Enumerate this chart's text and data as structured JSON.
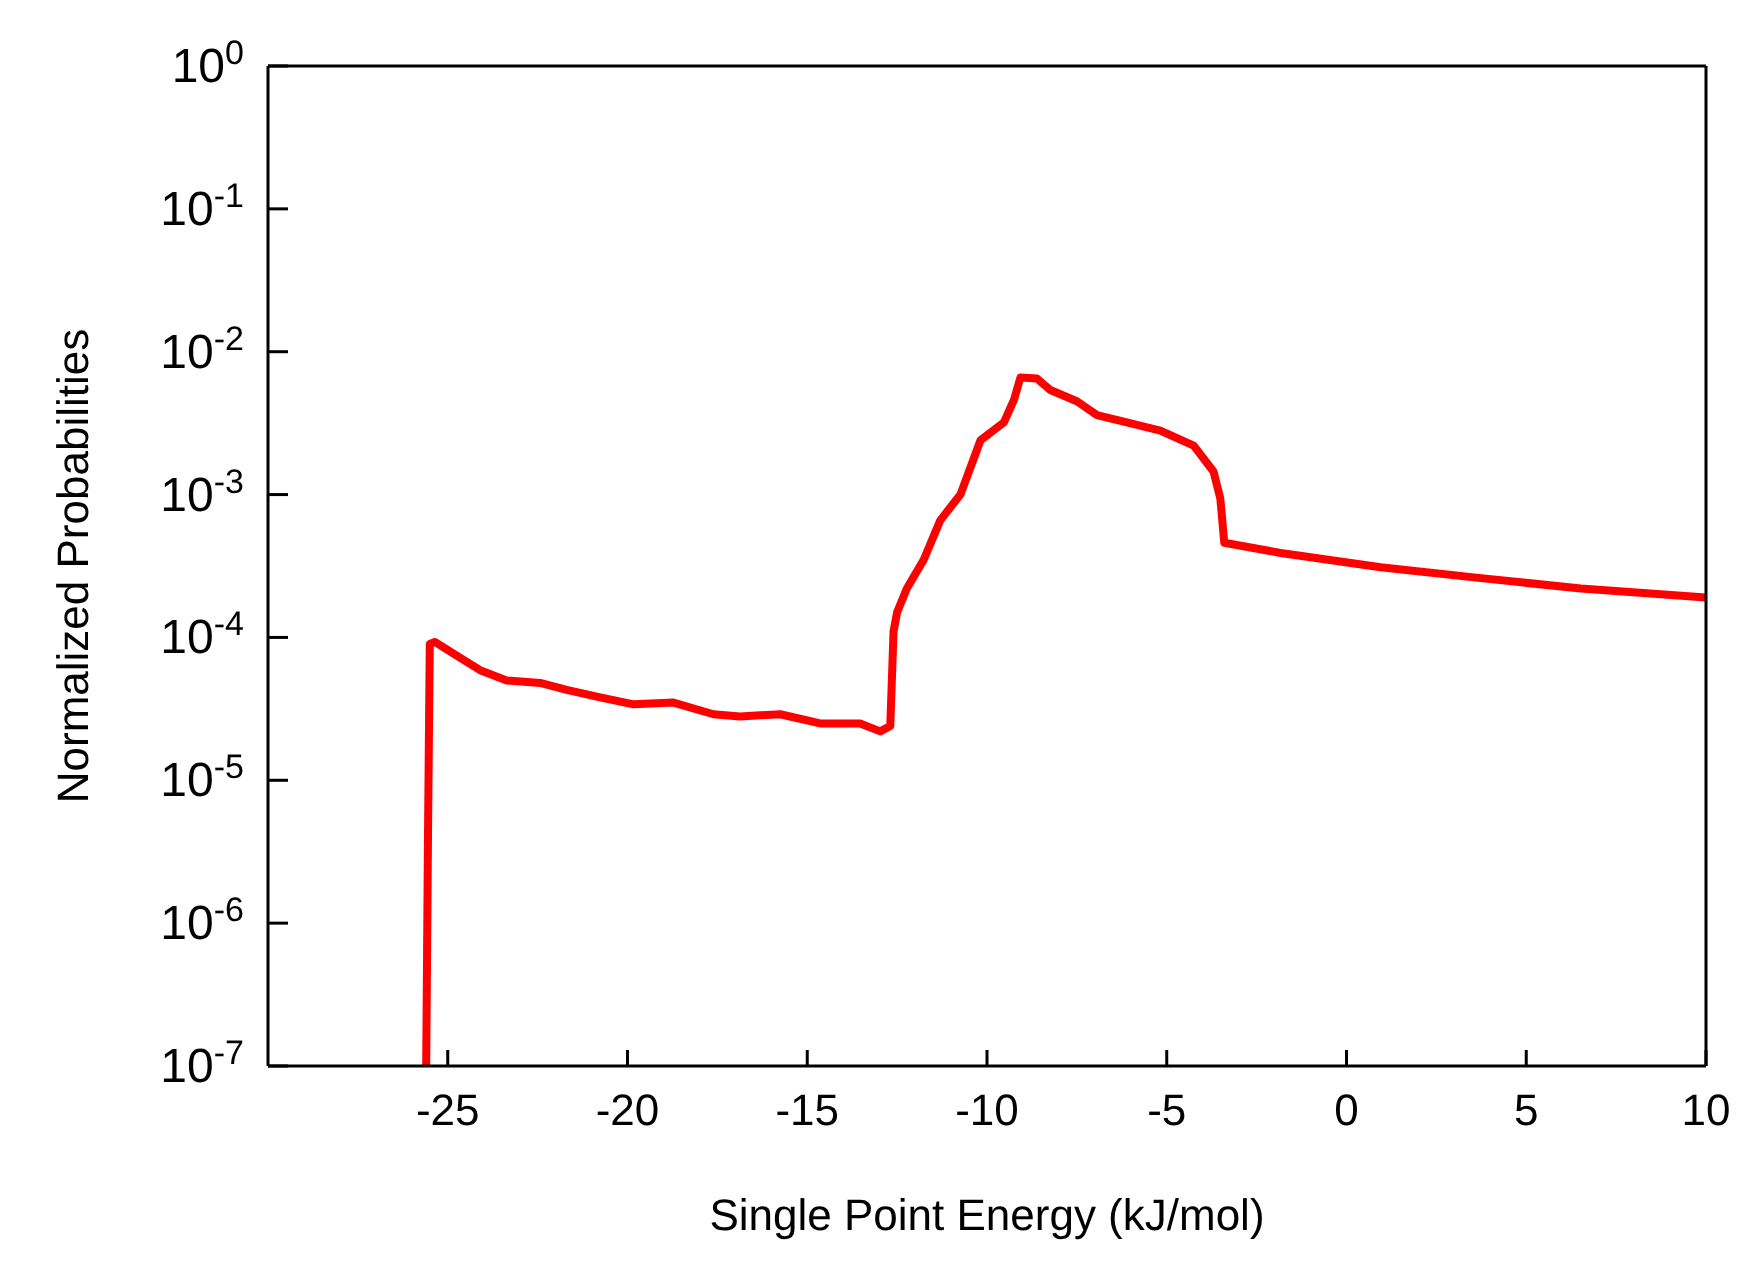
{
  "chart_data": {
    "type": "line",
    "xlabel": "Single Point Energy (kJ/mol)",
    "ylabel": "Normalized Probabilities",
    "log": "y",
    "grid": false,
    "legend": false,
    "marker": "none",
    "line_style": "solid",
    "xlim": [
      -30,
      10
    ],
    "xticks": [
      -25,
      -20,
      -15,
      -10,
      -5,
      0,
      5,
      10
    ],
    "ylim": [
      1e-07,
      1
    ],
    "yticks": [
      {
        "value": 1,
        "label": "10$^{0}$"
      },
      {
        "value": 0.1,
        "label": "10$^{-1}$"
      },
      {
        "value": 0.01,
        "label": "10$^{-2}$"
      },
      {
        "value": 0.001,
        "label": "10$^{-3}$"
      },
      {
        "value": 0.0001,
        "label": "10$^{-4}$"
      },
      {
        "value": 1e-05,
        "label": "10$^{-5}$"
      },
      {
        "value": 1e-06,
        "label": "10$^{-6}$"
      },
      {
        "value": 1e-07,
        "label": "10$^{-7}$"
      }
    ],
    "x": [
      -25.6,
      -25.55,
      -25.5,
      -25.36,
      -24.84,
      -24.1,
      -23.36,
      -22.43,
      -21.69,
      -20.76,
      -19.83,
      -18.72,
      -17.61,
      -16.87,
      -15.75,
      -14.64,
      -13.53,
      -12.97,
      -12.69,
      -12.6,
      -12.5,
      -12.23,
      -11.76,
      -11.3,
      -10.74,
      -10.18,
      -9.53,
      -9.25,
      -9.07,
      -8.61,
      -8.24,
      -7.5,
      -6.94,
      -6.11,
      -5.18,
      -4.25,
      -3.7,
      -3.51,
      -3.4,
      -1.83,
      0.95,
      3.74,
      6.52,
      10
    ],
    "series": [
      {
        "color": "#ff0000",
        "values": [
          1e-07,
          4e-06,
          9e-05,
          9.3e-05,
          7.7e-05,
          5.9e-05,
          5e-05,
          4.8e-05,
          4.3e-05,
          3.8e-05,
          3.4e-05,
          3.5e-05,
          2.9e-05,
          2.8e-05,
          2.9e-05,
          2.5e-05,
          2.5e-05,
          2.2e-05,
          2.4e-05,
          0.00011,
          0.00015,
          0.00022,
          0.00035,
          0.00066,
          0.001,
          0.0024,
          0.0032,
          0.0046,
          0.0066,
          0.0065,
          0.0054,
          0.0045,
          0.0036,
          0.0032,
          0.0028,
          0.0022,
          0.00145,
          0.00094,
          0.00046,
          0.00039,
          0.00031,
          0.00026,
          0.00022,
          0.00019
        ]
      }
    ]
  }
}
